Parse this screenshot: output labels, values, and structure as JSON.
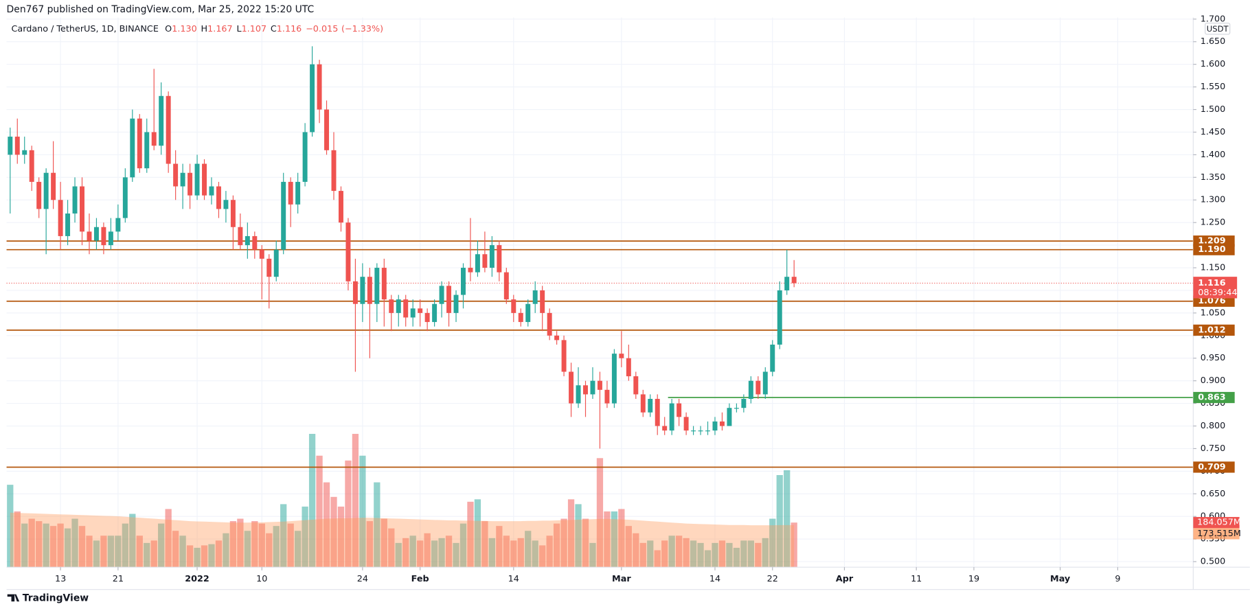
{
  "header": "Den767 published on TradingView.com, Mar 25, 2022 15:20 UTC",
  "footer": "TradingView",
  "chart_data": {
    "type": "candlestick",
    "title": "Cardano / TetherUS, 1D, BINANCE",
    "legend_values": [
      {
        "key": "O",
        "value": {
          "value": 1.13,
          "label": "1.130"
        }
      },
      {
        "key": "H",
        "value": 1.167
      },
      {
        "key": "L",
        "value": 1.107
      },
      {
        "key": "C",
        "value": 1.116
      }
    ],
    "change": {
      "value": -0.015,
      "label": "−0.015"
    },
    "change_percent": {
      "value": -1.33,
      "label": "(−1.33%)"
    },
    "currency": "USDT",
    "countdown": "08:39:44",
    "up_color": "#26a69a",
    "down_color": "#ef5350",
    "open": [
      1.4,
      1.44,
      1.4,
      1.41,
      1.34,
      1.28,
      1.36,
      1.3,
      1.22,
      1.27,
      1.33,
      1.23,
      1.21,
      1.24,
      1.2,
      1.23,
      1.26,
      1.35,
      1.48,
      1.37,
      1.45,
      1.42,
      1.53,
      1.38,
      1.33,
      1.36,
      1.31,
      1.38,
      1.31,
      1.33,
      1.28,
      1.3,
      1.24,
      1.2,
      1.22,
      1.19,
      1.17,
      1.13,
      1.19,
      1.34,
      1.29,
      1.34,
      1.45,
      1.6,
      1.5,
      1.41,
      1.32,
      1.25,
      1.12,
      1.07,
      1.13,
      1.07,
      1.15,
      1.08,
      1.05,
      1.08,
      1.04,
      1.06,
      1.05,
      1.03,
      1.07,
      1.11,
      1.05,
      1.09,
      1.15,
      1.14,
      1.18,
      1.15,
      1.2,
      1.14,
      1.08,
      1.05,
      1.03,
      1.07,
      1.1,
      1.05,
      1.0,
      0.99,
      0.92,
      0.85,
      0.89,
      0.87,
      0.9,
      0.88,
      0.85,
      0.96,
      0.95,
      0.91,
      0.87,
      0.83,
      0.86,
      0.8,
      0.79,
      0.85,
      0.82,
      0.79,
      0.79,
      0.79,
      0.79,
      0.81,
      0.8,
      0.84,
      0.84,
      0.86,
      0.9,
      0.87,
      0.92,
      0.98,
      1.1,
      1.13
    ],
    "high": [
      1.46,
      1.48,
      1.44,
      1.42,
      1.35,
      1.37,
      1.43,
      1.34,
      1.3,
      1.35,
      1.35,
      1.27,
      1.26,
      1.25,
      1.26,
      1.29,
      1.37,
      1.5,
      1.49,
      1.48,
      1.59,
      1.56,
      1.54,
      1.41,
      1.38,
      1.38,
      1.4,
      1.39,
      1.35,
      1.34,
      1.32,
      1.31,
      1.27,
      1.25,
      1.23,
      1.2,
      1.18,
      1.21,
      1.36,
      1.35,
      1.36,
      1.47,
      1.64,
      1.61,
      1.52,
      1.45,
      1.33,
      1.26,
      1.17,
      1.16,
      1.15,
      1.16,
      1.17,
      1.09,
      1.09,
      1.09,
      1.08,
      1.08,
      1.06,
      1.08,
      1.12,
      1.12,
      1.1,
      1.16,
      1.26,
      1.21,
      1.23,
      1.22,
      1.21,
      1.15,
      1.09,
      1.06,
      1.08,
      1.12,
      1.11,
      1.06,
      1.01,
      1.0,
      0.94,
      0.93,
      0.9,
      0.93,
      0.92,
      0.9,
      0.97,
      1.01,
      0.98,
      0.92,
      0.88,
      0.87,
      0.87,
      0.82,
      0.86,
      0.86,
      0.83,
      0.8,
      0.8,
      0.81,
      0.82,
      0.83,
      0.85,
      0.85,
      0.87,
      0.91,
      0.91,
      0.93,
      0.99,
      1.12,
      1.19,
      1.167
    ],
    "low": [
      1.27,
      1.38,
      1.38,
      1.32,
      1.26,
      1.18,
      1.28,
      1.19,
      1.2,
      1.25,
      1.2,
      1.18,
      1.19,
      1.18,
      1.19,
      1.21,
      1.25,
      1.34,
      1.36,
      1.36,
      1.41,
      1.4,
      1.36,
      1.3,
      1.28,
      1.28,
      1.3,
      1.3,
      1.29,
      1.26,
      1.25,
      1.19,
      1.19,
      1.17,
      1.17,
      1.08,
      1.06,
      1.12,
      1.18,
      1.24,
      1.27,
      1.33,
      1.44,
      1.47,
      1.4,
      1.3,
      1.23,
      1.1,
      0.92,
      1.03,
      0.95,
      1.03,
      1.02,
      1.01,
      1.02,
      1.02,
      1.02,
      1.02,
      1.01,
      1.02,
      1.04,
      1.02,
      1.03,
      1.06,
      1.12,
      1.13,
      1.14,
      1.13,
      1.12,
      1.07,
      1.03,
      1.02,
      1.02,
      1.05,
      1.01,
      0.99,
      0.98,
      0.91,
      0.82,
      0.84,
      0.82,
      0.86,
      0.75,
      0.84,
      0.84,
      0.93,
      0.9,
      0.86,
      0.82,
      0.82,
      0.78,
      0.78,
      0.78,
      0.8,
      0.78,
      0.78,
      0.78,
      0.78,
      0.78,
      0.79,
      0.8,
      0.83,
      0.83,
      0.85,
      0.86,
      0.86,
      0.91,
      0.97,
      1.09,
      1.107
    ],
    "close": [
      1.44,
      1.4,
      1.41,
      1.34,
      1.28,
      1.36,
      1.3,
      1.22,
      1.27,
      1.33,
      1.23,
      1.21,
      1.24,
      1.2,
      1.23,
      1.26,
      1.35,
      1.48,
      1.37,
      1.45,
      1.42,
      1.53,
      1.38,
      1.33,
      1.36,
      1.31,
      1.38,
      1.31,
      1.33,
      1.28,
      1.3,
      1.24,
      1.2,
      1.22,
      1.19,
      1.17,
      1.13,
      1.19,
      1.34,
      1.29,
      1.34,
      1.45,
      1.6,
      1.5,
      1.41,
      1.32,
      1.25,
      1.12,
      1.07,
      1.13,
      1.07,
      1.15,
      1.08,
      1.05,
      1.08,
      1.04,
      1.06,
      1.05,
      1.03,
      1.07,
      1.11,
      1.05,
      1.09,
      1.15,
      1.14,
      1.18,
      1.15,
      1.2,
      1.14,
      1.08,
      1.05,
      1.03,
      1.07,
      1.1,
      1.05,
      1.0,
      0.99,
      0.92,
      0.85,
      0.89,
      0.87,
      0.9,
      0.88,
      0.85,
      0.96,
      0.95,
      0.91,
      0.87,
      0.83,
      0.86,
      0.8,
      0.79,
      0.85,
      0.82,
      0.79,
      0.79,
      0.79,
      0.79,
      0.81,
      0.8,
      0.84,
      0.84,
      0.86,
      0.9,
      0.87,
      0.92,
      0.98,
      1.1,
      1.13,
      1.116
    ],
    "volume": [
      340,
      230,
      180,
      200,
      190,
      180,
      170,
      180,
      160,
      200,
      170,
      130,
      110,
      130,
      130,
      130,
      180,
      220,
      130,
      100,
      110,
      180,
      240,
      150,
      130,
      90,
      80,
      90,
      95,
      110,
      140,
      190,
      200,
      150,
      190,
      180,
      140,
      170,
      260,
      180,
      150,
      250,
      550,
      460,
      350,
      290,
      250,
      440,
      550,
      460,
      190,
      350,
      200,
      160,
      100,
      120,
      130,
      110,
      140,
      110,
      120,
      130,
      100,
      180,
      270,
      280,
      190,
      120,
      170,
      130,
      110,
      120,
      150,
      110,
      90,
      130,
      180,
      200,
      280,
      260,
      200,
      100,
      450,
      230,
      230,
      240,
      170,
      140,
      100,
      110,
      70,
      110,
      130,
      130,
      120,
      110,
      100,
      70,
      100,
      110,
      100,
      80,
      110,
      110,
      100,
      120,
      200,
      380,
      400,
      184.057
    ],
    "volume_label": "184.057M",
    "volume_ma": [
      225,
      224,
      223,
      222,
      221,
      220,
      219,
      218,
      217,
      216,
      215,
      214,
      213,
      212,
      211,
      210,
      208,
      206,
      204,
      202,
      200,
      198,
      196,
      194,
      192,
      190,
      189,
      188,
      187,
      186,
      185,
      184,
      184,
      184,
      185,
      185,
      186,
      187,
      188,
      190,
      192,
      194,
      196,
      198,
      200,
      201,
      202,
      202,
      203,
      204,
      204,
      203,
      202,
      201,
      200,
      199,
      198,
      197,
      196,
      195,
      194,
      193,
      193,
      192,
      192,
      191,
      191,
      190,
      190,
      190,
      190,
      190,
      191,
      191,
      192,
      192,
      193,
      194,
      195,
      196,
      197,
      198,
      199,
      199,
      198,
      197,
      196,
      194,
      192,
      190,
      188,
      186,
      184,
      182,
      180,
      179,
      178,
      177,
      176,
      175,
      174,
      174,
      174,
      173,
      173,
      173,
      173,
      173.5,
      173.5,
      173.515
    ],
    "volume_ma_label": "173.515M",
    "volume_ma_color": "#ff9a5c",
    "levels": [
      {
        "price": 1.209,
        "color": "#b4560b"
      },
      {
        "price": {
          "value": 1.19,
          "label": "1.190"
        },
        "color": "#b4560b"
      },
      {
        "price": 1.076,
        "color": "#b4560b"
      },
      {
        "price": 1.012,
        "color": "#b4560b"
      },
      {
        "price": 0.863,
        "color": "#43a047"
      },
      {
        "price": 0.709,
        "color": "#b4560b"
      }
    ],
    "xlim": [
      -0.5,
      164.5
    ],
    "xticks": [
      {
        "value": 7,
        "label": "13"
      },
      {
        "value": 15,
        "label": "21"
      },
      {
        "value": 26,
        "label": "2022"
      },
      {
        "value": 35,
        "label": "10"
      },
      {
        "value": 49,
        "label": "24"
      },
      {
        "value": 57,
        "label": "Feb"
      },
      {
        "value": 70,
        "label": "14"
      },
      {
        "value": 85,
        "label": "Mar"
      },
      {
        "value": 98,
        "label": "14"
      },
      {
        "value": 106,
        "label": "22"
      },
      {
        "value": 116,
        "label": "Apr"
      },
      {
        "value": 126,
        "label": "11"
      },
      {
        "value": 134,
        "label": "19"
      },
      {
        "value": 146,
        "label": "May"
      },
      {
        "value": 154,
        "label": "9"
      }
    ],
    "ylim": [
      0.4877,
      1.7035
    ],
    "yticks": [
      {
        "value": 0.5,
        "label": "0.500"
      },
      {
        "value": 0.55,
        "label": "0.550"
      },
      {
        "value": 0.6,
        "label": "0.600"
      },
      {
        "value": 0.65,
        "label": "0.650"
      },
      {
        "value": 0.7,
        "label": "0.700"
      },
      {
        "value": 0.75,
        "label": "0.750"
      },
      {
        "value": 0.8,
        "label": "0.800"
      },
      {
        "value": 0.85,
        "label": "0.850"
      },
      {
        "value": 0.9,
        "label": "0.900"
      },
      {
        "value": 0.95,
        "label": "0.950"
      },
      {
        "value": 1,
        "label": "1.000"
      },
      {
        "value": 1.05,
        "label": "1.050"
      },
      {
        "value": 1.1,
        "label": "1.100"
      },
      {
        "value": 1.15,
        "label": "1.150"
      },
      {
        "value": 1.2,
        "label": "1.200"
      },
      {
        "value": 1.25,
        "label": "1.250"
      },
      {
        "value": 1.3,
        "label": "1.300"
      },
      {
        "value": 1.35,
        "label": "1.350"
      },
      {
        "value": 1.4,
        "label": "1.400"
      },
      {
        "value": 1.45,
        "label": "1.450"
      },
      {
        "value": 1.5,
        "label": "1.500"
      },
      {
        "value": 1.55,
        "label": "1.550"
      },
      {
        "value": 1.6,
        "label": "1.600"
      },
      {
        "value": 1.65,
        "label": "1.650"
      },
      {
        "value": 1.7,
        "label": "1.700"
      }
    ],
    "grid": true
  }
}
